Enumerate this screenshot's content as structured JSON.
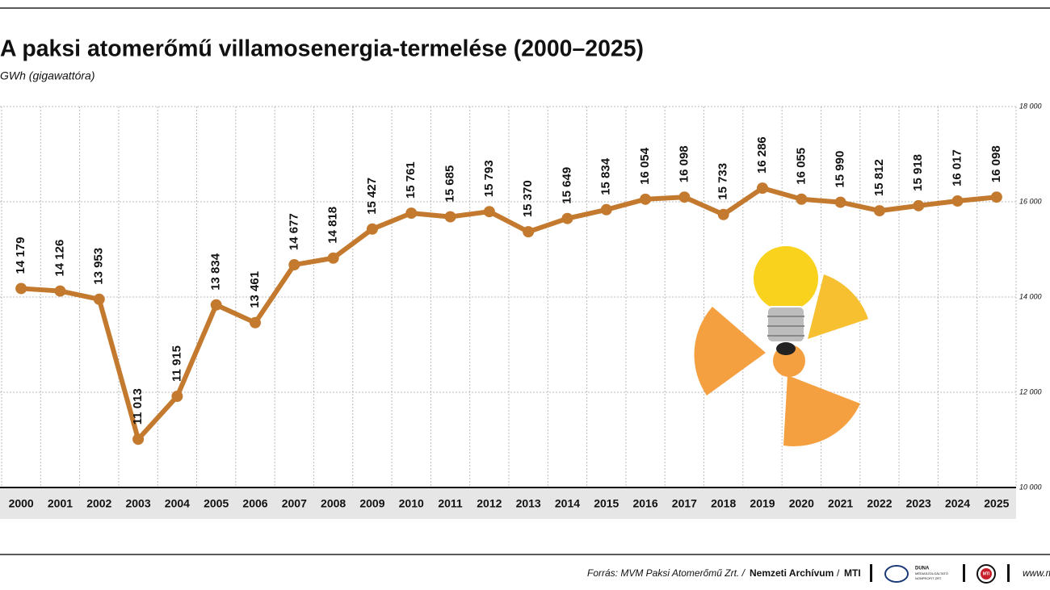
{
  "chart_data": {
    "type": "line",
    "title": "A paksi atomerőmű villamosenergia-termelése (2000–2025)",
    "subtitle": "GWh (gigawattóra)",
    "categories": [
      "2000",
      "2001",
      "2002",
      "2003",
      "2004",
      "2005",
      "2006",
      "2007",
      "2008",
      "2009",
      "2010",
      "2011",
      "2012",
      "2013",
      "2014",
      "2015",
      "2016",
      "2017",
      "2018",
      "2019",
      "2020",
      "2021",
      "2022",
      "2023",
      "2024",
      "2025"
    ],
    "series": [
      {
        "color": "#c47a2e",
        "values": [
          14179,
          14126,
          13953,
          11013,
          11915,
          13834,
          13461,
          14677,
          14818,
          15427,
          15761,
          15685,
          15793,
          15370,
          15649,
          15834,
          16054,
          16098,
          15733,
          16286,
          16055,
          15990,
          15812,
          15918,
          16017,
          16098
        ],
        "value_labels": [
          "14 179",
          "14 126",
          "13 953",
          "11 013",
          "11 915",
          "13 834",
          "13 461",
          "14 677",
          "14 818",
          "15 427",
          "15 761",
          "15 685",
          "15 793",
          "15 370",
          "15 649",
          "15 834",
          "16 054",
          "16 098",
          "15 733",
          "16 286",
          "16 055",
          "15 990",
          "15 812",
          "15 918",
          "16 017",
          "16 098"
        ]
      }
    ],
    "ylim": [
      10000,
      18000
    ],
    "yticks": [
      {
        "value": 10000,
        "label": "10 000"
      },
      {
        "value": 12000,
        "label": "12 000"
      },
      {
        "value": 14000,
        "label": "14 000"
      },
      {
        "value": 16000,
        "label": "16 000"
      },
      {
        "value": 18000,
        "label": "18 000"
      }
    ],
    "grid": true,
    "source": [
      "Forrás: MVM Paksi Atomerőmű Zrt. /",
      "Nemzeti Archívum",
      "/",
      "MTI"
    ],
    "logos": [
      "DUNA",
      "MÉDIASZOLGÁLTATÓ",
      "NONPROFIT ZRT.",
      "MTI"
    ],
    "website": "www.m"
  }
}
